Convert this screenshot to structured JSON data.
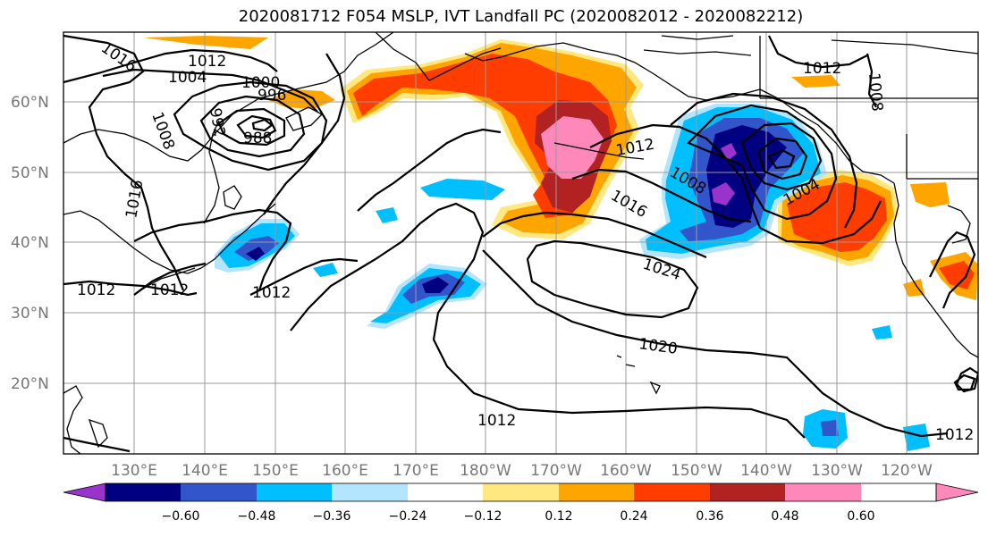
{
  "title": "2020081712 F054 MSLP, IVT Landfall PC (2020082012 - 2020082212)",
  "lat_labels": [
    "60°N",
    "50°N",
    "40°N",
    "30°N",
    "20°N"
  ],
  "lon_labels": [
    "130°E",
    "140°E",
    "150°E",
    "160°E",
    "170°E",
    "180°W",
    "170°W",
    "160°W",
    "150°W",
    "140°W",
    "130°W",
    "120°W"
  ],
  "colorbar": {
    "ticks": [
      "−0.60",
      "−0.48",
      "−0.36",
      "−0.24",
      "−0.12",
      "0.12",
      "0.24",
      "0.36",
      "0.48",
      "0.60"
    ],
    "colors": [
      "#9933cc",
      "#000080",
      "#3355cc",
      "#00bfff",
      "#b3e5ff",
      "#ffffff",
      "#ffe880",
      "#ffa500",
      "#ff3d00",
      "#b22222",
      "#ff88bb"
    ]
  },
  "contour_labels": [
    "1016",
    "1012",
    "1004",
    "1000",
    "996",
    "992",
    "988",
    "1008",
    "1016",
    "1012",
    "1012",
    "1012",
    "1012",
    "1008",
    "1004",
    "1016",
    "1024",
    "1020",
    "1012",
    "1012",
    "1008",
    "1012"
  ]
}
